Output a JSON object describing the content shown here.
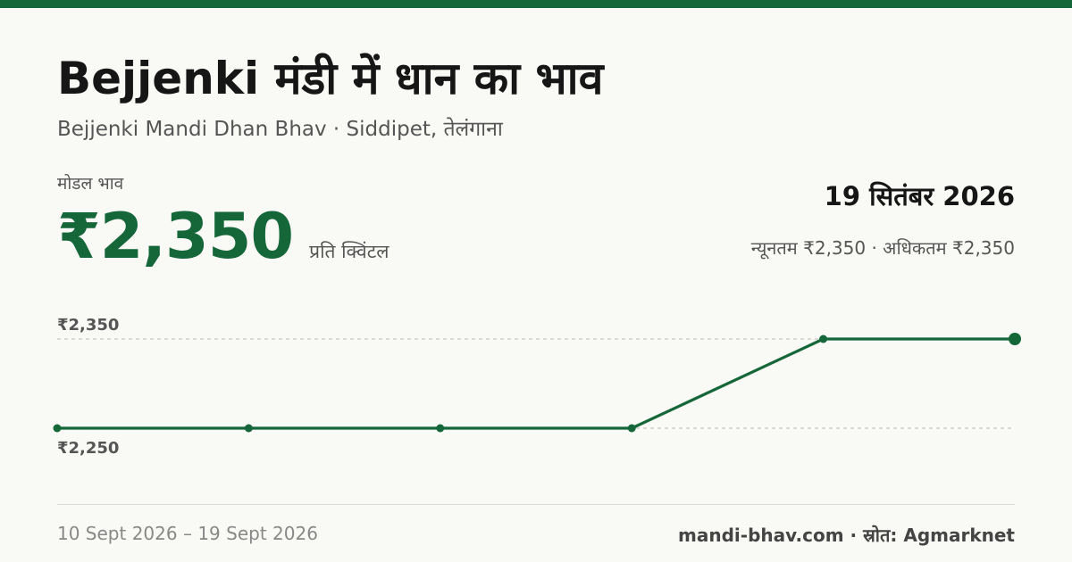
{
  "header": {
    "title": "Bejjenki मंडी में धान का भाव",
    "subtitle": "Bejjenki Mandi Dhan Bhav · Siddipet, तेलंगाना"
  },
  "price": {
    "label": "मोडल भाव",
    "value": "₹2,350",
    "unit": "प्रति क्विंटल"
  },
  "summary": {
    "date": "19 सितंबर 2026",
    "range": "न्यूनतम ₹2,350 · अधिकतम ₹2,350"
  },
  "footer": {
    "date_range": "10 Sept 2026 – 19 Sept 2026",
    "source": "mandi-bhav.com · स्रोत: Agmarknet"
  },
  "colors": {
    "brand": "#15673a",
    "grid": "#c8c8c2"
  },
  "chart_data": {
    "type": "line",
    "title": "",
    "xlabel": "",
    "ylabel": "",
    "y_tick_labels": [
      "₹2,350",
      "₹2,250"
    ],
    "y_ticks": [
      2350,
      2250
    ],
    "ylim": [
      2250,
      2350
    ],
    "grid": true,
    "series": [
      {
        "values": [
          2250,
          2250,
          2250,
          2250,
          2350,
          2350
        ]
      }
    ]
  }
}
